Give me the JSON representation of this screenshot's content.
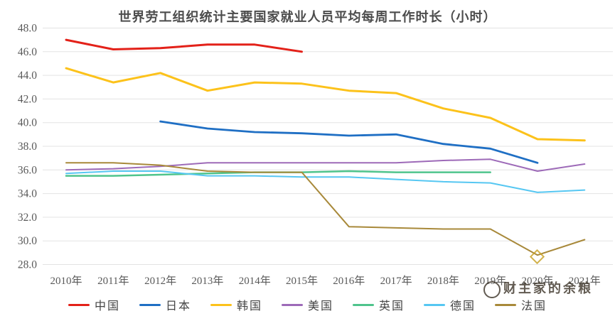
{
  "chart_data": {
    "type": "line",
    "title": "世界劳工组织统计主要国家就业人员平均每周工作时长（小时）",
    "categories": [
      "2010年",
      "2011年",
      "2012年",
      "2013年",
      "2014年",
      "2015年",
      "2016年",
      "2017年",
      "2018年",
      "2019年",
      "2020年",
      "2021年"
    ],
    "y_tick_labels": [
      "48.0",
      "46.0",
      "44.0",
      "42.0",
      "40.0",
      "38.0",
      "36.0",
      "34.0",
      "32.0",
      "30.0",
      "28.0"
    ],
    "ylim": [
      28.0,
      48.0
    ],
    "y_step": 2.0,
    "grid": "horizontal-only",
    "legend_position": "bottom",
    "series": [
      {
        "name": "中国",
        "color": "#e32119",
        "width": 3,
        "values": [
          47.0,
          46.2,
          46.3,
          46.6,
          46.6,
          46.0,
          null,
          null,
          null,
          null,
          null,
          null
        ]
      },
      {
        "name": "日本",
        "color": "#1f6fc4",
        "width": 2.8,
        "values": [
          null,
          null,
          40.1,
          39.5,
          39.2,
          39.1,
          38.9,
          39.0,
          38.2,
          37.8,
          36.6,
          null
        ]
      },
      {
        "name": "韩国",
        "color": "#fcc21b",
        "width": 3,
        "values": [
          44.6,
          43.4,
          44.2,
          42.7,
          43.4,
          43.3,
          42.7,
          42.5,
          41.2,
          40.4,
          38.6,
          38.5
        ]
      },
      {
        "name": "美国",
        "color": "#9d6ab8",
        "width": 2,
        "values": [
          36.0,
          36.1,
          36.3,
          36.6,
          36.6,
          36.6,
          36.6,
          36.6,
          36.8,
          36.9,
          35.9,
          36.5
        ]
      },
      {
        "name": "英国",
        "color": "#4fc48c",
        "width": 2.5,
        "values": [
          35.5,
          35.5,
          35.6,
          35.7,
          35.8,
          35.8,
          35.9,
          35.8,
          35.8,
          35.8,
          null,
          null
        ]
      },
      {
        "name": "德国",
        "color": "#56c7f2",
        "width": 2,
        "values": [
          35.7,
          35.9,
          35.9,
          35.5,
          35.5,
          35.4,
          35.4,
          35.2,
          35.0,
          34.9,
          34.1,
          34.3
        ]
      },
      {
        "name": "法国",
        "color": "#a8893a",
        "width": 2,
        "values": [
          36.6,
          36.6,
          36.4,
          35.9,
          35.8,
          35.8,
          31.2,
          31.1,
          31.0,
          31.0,
          28.8,
          30.1
        ]
      }
    ],
    "colors": {
      "grid": "#e3e3e3",
      "tick_label": "#595959",
      "title": "#4c4c4c"
    }
  },
  "watermark": {
    "text": "财主家的余粮"
  }
}
